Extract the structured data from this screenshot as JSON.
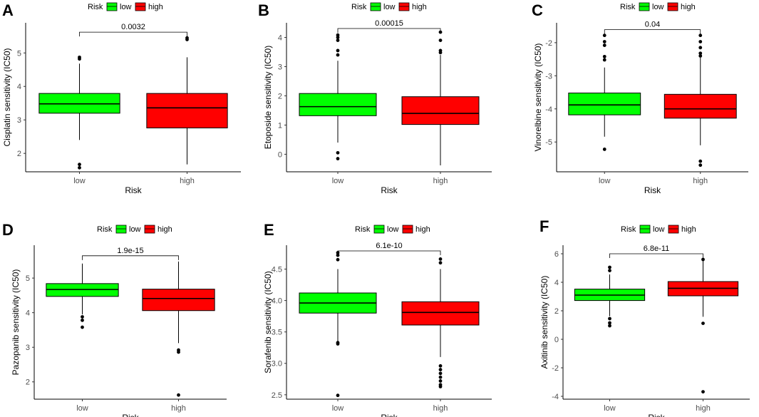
{
  "legend": {
    "title": "Risk",
    "low": "low",
    "high": "high"
  },
  "colors": {
    "low": "#00FF00",
    "high": "#FF0000",
    "outline": "#000000",
    "axis": "#000000"
  },
  "chart_data": [
    {
      "type": "boxplot",
      "panel": "A",
      "title": "",
      "xlabel": "Risk",
      "ylabel": "Cisplatin sensitivity (IC50)",
      "categories": [
        "low",
        "high"
      ],
      "ylim": [
        1.45,
        5.9
      ],
      "yticks": [
        "2",
        "3",
        "4",
        "5"
      ],
      "pvalue": "0.0032",
      "series": [
        {
          "name": "low",
          "q1": 3.2,
          "median": 3.48,
          "q3": 3.79,
          "whisker_low": 2.4,
          "whisker_high": 4.68,
          "outliers": [
            4.82,
            4.87,
            1.67,
            1.57
          ]
        },
        {
          "name": "high",
          "q1": 2.76,
          "median": 3.36,
          "q3": 3.79,
          "whisker_low": 1.67,
          "whisker_high": 4.87,
          "outliers": [
            5.4,
            5.45
          ]
        }
      ]
    },
    {
      "type": "boxplot",
      "panel": "B",
      "title": "",
      "xlabel": "Risk",
      "ylabel": "Etoposide sensitivity (IC50)",
      "categories": [
        "low",
        "high"
      ],
      "ylim": [
        -0.6,
        4.5
      ],
      "yticks": [
        "0",
        "1",
        "2",
        "3",
        "4"
      ],
      "pvalue": "0.00015",
      "series": [
        {
          "name": "low",
          "q1": 1.32,
          "median": 1.63,
          "q3": 2.08,
          "whisker_low": 0.4,
          "whisker_high": 3.2,
          "outliers": [
            3.4,
            3.55,
            3.9,
            4.0,
            4.08,
            0.05,
            -0.15
          ]
        },
        {
          "name": "high",
          "q1": 1.02,
          "median": 1.4,
          "q3": 1.97,
          "whisker_low": -0.38,
          "whisker_high": 3.4,
          "outliers": [
            3.48,
            3.55,
            3.9,
            4.18
          ]
        }
      ]
    },
    {
      "type": "boxplot",
      "panel": "C",
      "title": "",
      "xlabel": "Risk",
      "ylabel": "Vinorelbine sensitivity (IC50)",
      "categories": [
        "low",
        "high"
      ],
      "ylim": [
        -5.9,
        -1.4
      ],
      "yticks": [
        "-5",
        "-4",
        "-3",
        "-2"
      ],
      "pvalue": "0.04",
      "series": [
        {
          "name": "low",
          "q1": -4.18,
          "median": -3.88,
          "q3": -3.52,
          "whisker_low": -4.84,
          "whisker_high": -2.75,
          "outliers": [
            -1.78,
            -1.97,
            -2.08,
            -2.42,
            -2.52,
            -5.22
          ]
        },
        {
          "name": "high",
          "q1": -4.28,
          "median": -4.0,
          "q3": -3.56,
          "whisker_low": -5.1,
          "whisker_high": -2.45,
          "outliers": [
            -1.78,
            -1.97,
            -2.15,
            -2.32,
            -2.4,
            -5.58,
            -5.7
          ]
        }
      ]
    },
    {
      "type": "boxplot",
      "panel": "D",
      "title": "",
      "xlabel": "Risk",
      "ylabel": "Pazopanib sensitivity (IC50)",
      "categories": [
        "low",
        "high"
      ],
      "ylim": [
        1.5,
        5.95
      ],
      "yticks": [
        "2",
        "3",
        "4",
        "5"
      ],
      "pvalue": "1.9e-15",
      "series": [
        {
          "name": "low",
          "q1": 4.47,
          "median": 4.67,
          "q3": 4.84,
          "whisker_low": 3.95,
          "whisker_high": 5.42,
          "outliers": [
            3.88,
            3.78,
            3.58
          ]
        },
        {
          "name": "high",
          "q1": 4.06,
          "median": 4.41,
          "q3": 4.68,
          "whisker_low": 3.12,
          "whisker_high": 5.48,
          "outliers": [
            2.92,
            2.86,
            1.62
          ]
        }
      ]
    },
    {
      "type": "boxplot",
      "panel": "E",
      "title": "",
      "xlabel": "Risk",
      "ylabel": "Sorafenib sensitivity (IC50)",
      "categories": [
        "low",
        "high"
      ],
      "ylim": [
        2.43,
        4.88
      ],
      "yticks": [
        "2.5",
        "3.0",
        "3.5",
        "4.0",
        "4.5"
      ],
      "pvalue": "6.1e-10",
      "series": [
        {
          "name": "low",
          "q1": 3.8,
          "median": 3.96,
          "q3": 4.12,
          "whisker_low": 3.35,
          "whisker_high": 4.5,
          "outliers": [
            4.65,
            4.72,
            4.76,
            3.33,
            3.31,
            2.49
          ]
        },
        {
          "name": "high",
          "q1": 3.61,
          "median": 3.81,
          "q3": 3.98,
          "whisker_low": 3.1,
          "whisker_high": 4.5,
          "outliers": [
            4.6,
            4.66,
            2.96,
            2.9,
            2.84,
            2.78,
            2.72,
            2.66,
            2.63
          ]
        }
      ]
    },
    {
      "type": "boxplot",
      "panel": "F",
      "title": "",
      "xlabel": "Risk",
      "ylabel": "Axitinib sensitivity (IC50)",
      "categories": [
        "low",
        "high"
      ],
      "ylim": [
        -4.2,
        6.6
      ],
      "yticks": [
        "-4",
        "-2",
        "0",
        "2",
        "4",
        "6"
      ],
      "pvalue": "6.8e-11",
      "series": [
        {
          "name": "low",
          "q1": 2.72,
          "median": 3.1,
          "q3": 3.52,
          "whisker_low": 1.62,
          "whisker_high": 4.55,
          "outliers": [
            5.05,
            4.82,
            1.45,
            1.15,
            0.95
          ]
        },
        {
          "name": "high",
          "q1": 3.05,
          "median": 3.58,
          "q3": 4.05,
          "whisker_low": 1.58,
          "whisker_high": 5.55,
          "outliers": [
            5.6,
            1.12,
            -3.68
          ]
        }
      ]
    }
  ]
}
